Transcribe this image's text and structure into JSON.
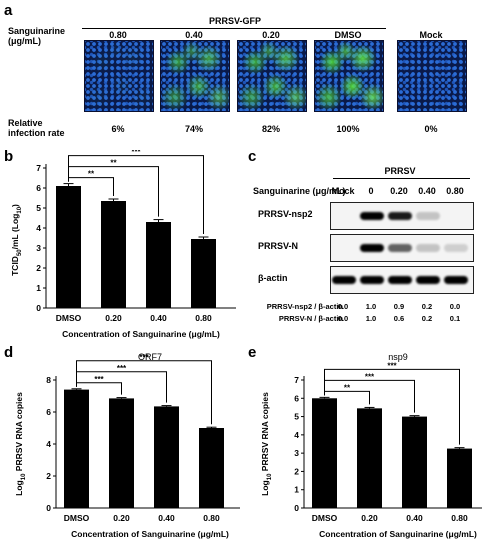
{
  "panel_a": {
    "letter": "a",
    "treatment_label_line1": "Sanguinarine",
    "treatment_label_line2": "(μg/mL)",
    "virus_label": "PRRSV-GFP",
    "columns": [
      "0.80",
      "0.40",
      "0.20",
      "DMSO",
      "Mock"
    ],
    "green_intensity": [
      0.06,
      0.74,
      0.82,
      1.0,
      0.0
    ],
    "rate_label_line1": "Relative",
    "rate_label_line2": "infection rate",
    "rates": [
      "6%",
      "74%",
      "82%",
      "100%",
      "0%"
    ]
  },
  "panel_b": {
    "letter": "b",
    "ylabel": "TCID50/mL (Log10)",
    "ylabel_main": "TCID",
    "ylabel_sub": "50",
    "ylabel_mid": "/mL (Log",
    "ylabel_sub2": "10",
    "ylabel_end": ")",
    "xlabel": "Concentration of Sanguinarine (μg/mL)",
    "yticks": [
      "0",
      "1",
      "2",
      "3",
      "4",
      "5",
      "6",
      "7"
    ],
    "sig": [
      "**",
      "**",
      "***"
    ]
  },
  "panel_c": {
    "letter": "c",
    "virus_label": "PRRSV",
    "treatment_label": "Sanguinarine (μg/mL)",
    "lanes": [
      "Mock",
      "0",
      "0.20",
      "0.40",
      "0.80"
    ],
    "rows": [
      "PRRSV-nsp2",
      "PRRSV-N",
      "β-actin"
    ],
    "quant": [
      {
        "label": "PRRSV-nsp2 / β-actin",
        "values": [
          "0.0",
          "1.0",
          "0.9",
          "0.2",
          "0.0"
        ]
      },
      {
        "label": "PRRSV-N / β-actin",
        "values": [
          "0.0",
          "1.0",
          "0.6",
          "0.2",
          "0.1"
        ]
      }
    ],
    "band_intensity": [
      [
        0.0,
        1.0,
        0.9,
        0.2,
        0.0
      ],
      [
        0.0,
        1.0,
        0.6,
        0.2,
        0.1
      ],
      [
        1.0,
        1.0,
        1.0,
        1.0,
        1.0
      ]
    ]
  },
  "panel_d": {
    "letter": "d",
    "title": "ORF7",
    "ylabel_pre": "Log",
    "ylabel_sub": "10",
    "ylabel_post": " PRRSV RNA copies",
    "xlabel": "Concentration of Sanguinarine (μg/mL)",
    "yticks": [
      "0",
      "2",
      "4",
      "6",
      "8"
    ],
    "sig": [
      "***",
      "***",
      "***"
    ]
  },
  "panel_e": {
    "letter": "e",
    "title": "nsp9",
    "ylabel_pre": "Log",
    "ylabel_sub": "10",
    "ylabel_post": " PRRSV RNA copies",
    "xlabel": "Concentration of Sanguinarine (μg/mL)",
    "yticks": [
      "0",
      "1",
      "2",
      "3",
      "4",
      "5",
      "6",
      "7"
    ],
    "sig": [
      "**",
      "***",
      "***"
    ]
  },
  "chart_data": [
    {
      "type": "bar",
      "categories": [
        "DMSO",
        "0.20",
        "0.40",
        "0.80"
      ],
      "values": [
        6.1,
        5.35,
        4.3,
        3.45
      ],
      "errors": [
        0.12,
        0.1,
        0.12,
        0.1
      ],
      "xlabel": "Concentration of Sanguinarine (μg/mL)",
      "ylabel": "TCID50/mL (Log10)",
      "ylim": [
        0,
        7
      ],
      "bar_color": "#000000"
    },
    {
      "type": "bar",
      "title": "ORF7",
      "categories": [
        "DMSO",
        "0.20",
        "0.40",
        "0.80"
      ],
      "values": [
        7.4,
        6.85,
        6.35,
        5.0
      ],
      "errors": [
        0.05,
        0.05,
        0.05,
        0.05
      ],
      "xlabel": "Concentration of Sanguinarine (μg/mL)",
      "ylabel": "Log10 PRRSV RNA copies",
      "ylim": [
        0,
        8
      ],
      "bar_color": "#000000"
    },
    {
      "type": "bar",
      "title": "nsp9",
      "categories": [
        "DMSO",
        "0.20",
        "0.40",
        "0.80"
      ],
      "values": [
        6.0,
        5.45,
        5.0,
        3.25
      ],
      "errors": [
        0.05,
        0.05,
        0.05,
        0.05
      ],
      "xlabel": "Concentration of Sanguinarine (μg/mL)",
      "ylabel": "Log10 PRRSV RNA copies",
      "ylim": [
        0,
        7
      ],
      "bar_color": "#000000"
    }
  ]
}
